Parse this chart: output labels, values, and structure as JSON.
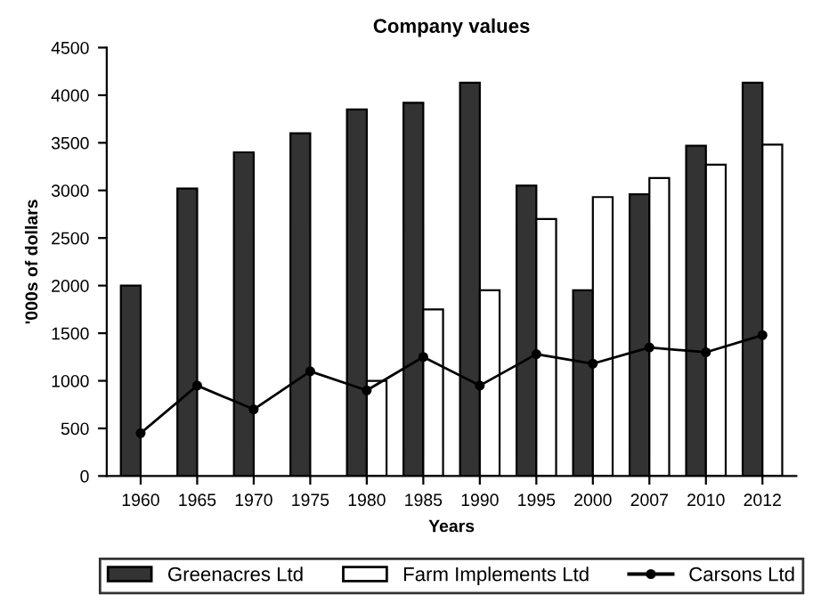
{
  "chart_data": {
    "type": "bar",
    "title": "Company values",
    "xlabel": "Years",
    "ylabel": "'000s of dollars",
    "categories": [
      "1960",
      "1965",
      "1970",
      "1975",
      "1980",
      "1985",
      "1990",
      "1995",
      "2000",
      "2007",
      "2010",
      "2012"
    ],
    "series": [
      {
        "name": "Greenacres Ltd",
        "color": "#333333",
        "values": [
          2000,
          3020,
          3400,
          3600,
          3850,
          3920,
          4130,
          3050,
          1950,
          2960,
          3470,
          4130
        ]
      },
      {
        "name": "Farm Implements Ltd",
        "color": "#ffffff",
        "values": [
          null,
          null,
          null,
          null,
          1000,
          1750,
          1950,
          2700,
          2930,
          3130,
          3270,
          3480
        ]
      },
      {
        "name": "Carsons Ltd",
        "type": "line",
        "color": "#000000",
        "marker": "circle",
        "values": [
          450,
          950,
          700,
          1100,
          900,
          1250,
          950,
          1280,
          1180,
          1350,
          1300,
          1480
        ]
      }
    ],
    "ylim": [
      0,
      4500
    ],
    "yticks": [
      0,
      500,
      1000,
      1500,
      2000,
      2500,
      3000,
      3500,
      4000,
      4500
    ],
    "grid": false,
    "legend": "bottom"
  }
}
